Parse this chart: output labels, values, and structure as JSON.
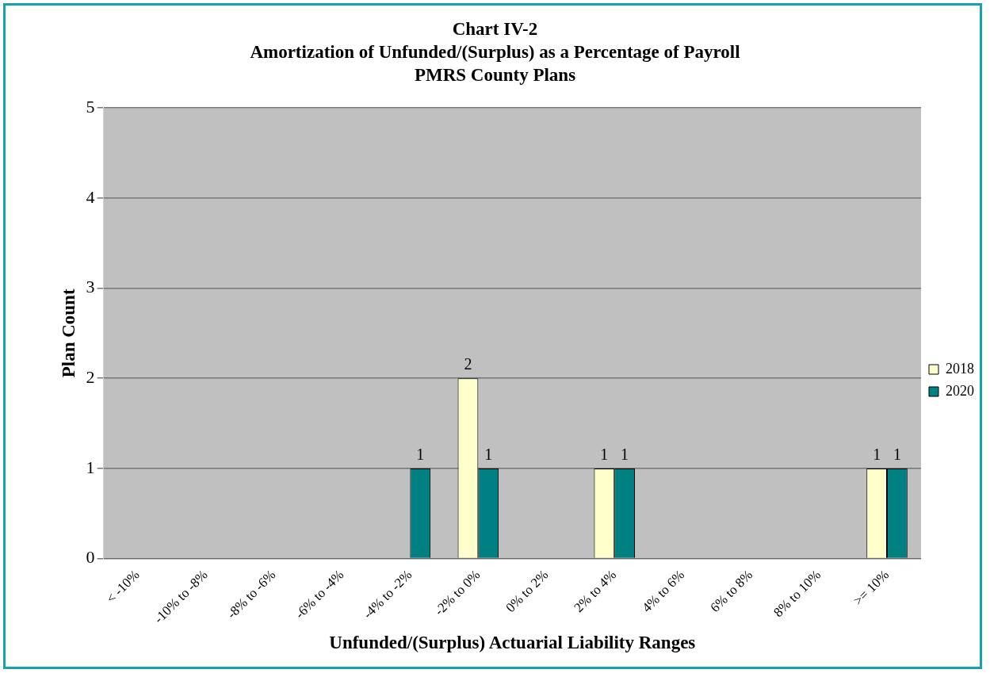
{
  "chart_data": {
    "type": "bar",
    "title": "Chart IV-2\nAmortization of Unfunded/(Surplus) as a Percentage of Payroll\nPMRS County Plans",
    "xlabel": "Unfunded/(Surplus) Actuarial Liability Ranges",
    "ylabel": "Plan Count",
    "categories": [
      "< -10%",
      "-10% to -8%",
      "-8% to -6%",
      "-6% to -4%",
      "-4% to -2%",
      "-2% to 0%",
      "0% to 2%",
      "2% to 4%",
      "4% to 6%",
      "6% to 8%",
      "8% to 10%",
      ">= 10%"
    ],
    "series": [
      {
        "name": "2018",
        "color": "#ffffcc",
        "values": [
          0,
          0,
          0,
          0,
          0,
          2,
          0,
          1,
          0,
          0,
          0,
          1
        ],
        "value_labels": [
          null,
          null,
          null,
          null,
          null,
          "2",
          null,
          "1",
          null,
          null,
          null,
          "1"
        ]
      },
      {
        "name": "2020",
        "color": "#008080",
        "values": [
          0,
          0,
          0,
          0,
          1,
          1,
          0,
          1,
          0,
          0,
          0,
          1
        ],
        "value_labels": [
          null,
          null,
          null,
          null,
          "1",
          "1",
          null,
          "1",
          null,
          null,
          null,
          "1"
        ]
      }
    ],
    "ylim": [
      0,
      5
    ],
    "yticks": [
      0,
      1,
      2,
      3,
      4,
      5
    ],
    "grid": "y",
    "legend": "right"
  }
}
